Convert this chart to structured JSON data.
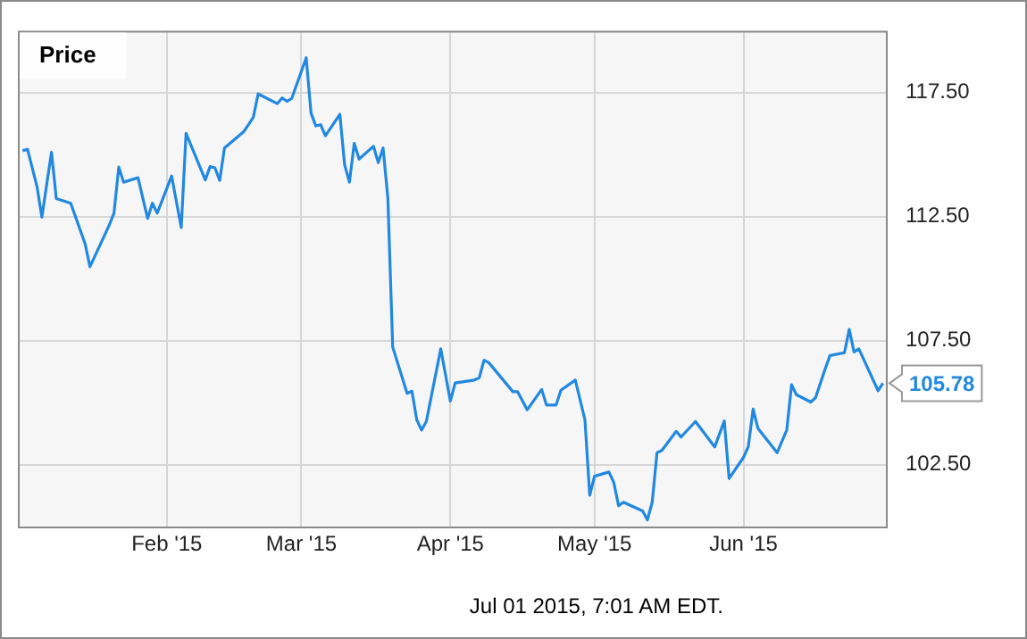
{
  "chart_data": {
    "type": "line",
    "title": "Price",
    "x": [
      "2015-01-02",
      "2015-01-03",
      "2015-01-05",
      "2015-01-06",
      "2015-01-08",
      "2015-01-09",
      "2015-01-12",
      "2015-01-15",
      "2015-01-16",
      "2015-01-20",
      "2015-01-21",
      "2015-01-22",
      "2015-01-23",
      "2015-01-26",
      "2015-01-28",
      "2015-01-29",
      "2015-01-30",
      "2015-02-02",
      "2015-02-04",
      "2015-02-05",
      "2015-02-09",
      "2015-02-10",
      "2015-02-11",
      "2015-02-12",
      "2015-02-13",
      "2015-02-17",
      "2015-02-18",
      "2015-02-19",
      "2015-02-20",
      "2015-02-24",
      "2015-02-25",
      "2015-02-26",
      "2015-02-27",
      "2015-03-02",
      "2015-03-03",
      "2015-03-04",
      "2015-03-05",
      "2015-03-06",
      "2015-03-09",
      "2015-03-10",
      "2015-03-11",
      "2015-03-12",
      "2015-03-13",
      "2015-03-16",
      "2015-03-17",
      "2015-03-18",
      "2015-03-19",
      "2015-03-20",
      "2015-03-23",
      "2015-03-24",
      "2015-03-25",
      "2015-03-26",
      "2015-03-27",
      "2015-03-30",
      "2015-04-01",
      "2015-04-02",
      "2015-04-06",
      "2015-04-07",
      "2015-04-08",
      "2015-04-09",
      "2015-04-14",
      "2015-04-15",
      "2015-04-17",
      "2015-04-20",
      "2015-04-21",
      "2015-04-23",
      "2015-04-24",
      "2015-04-27",
      "2015-04-29",
      "2015-04-30",
      "2015-05-01",
      "2015-05-04",
      "2015-05-05",
      "2015-05-06",
      "2015-05-07",
      "2015-05-11",
      "2015-05-12",
      "2015-05-13",
      "2015-05-14",
      "2015-05-15",
      "2015-05-18",
      "2015-05-19",
      "2015-05-22",
      "2015-05-26",
      "2015-05-28",
      "2015-05-29",
      "2015-06-01",
      "2015-06-02",
      "2015-06-03",
      "2015-06-04",
      "2015-06-08",
      "2015-06-10",
      "2015-06-11",
      "2015-06-12",
      "2015-06-15",
      "2015-06-16",
      "2015-06-18",
      "2015-06-19",
      "2015-06-22",
      "2015-06-23",
      "2015-06-24",
      "2015-06-25",
      "2015-06-29",
      "2015-06-30"
    ],
    "series": [
      {
        "color": "#2288e0",
        "values": [
          115.16,
          115.22,
          113.7,
          112.48,
          115.1,
          113.23,
          113.04,
          111.4,
          110.48,
          112.15,
          112.64,
          114.5,
          113.89,
          114.07,
          112.43,
          113.04,
          112.64,
          114.14,
          112.06,
          115.86,
          113.98,
          114.52,
          114.47,
          113.96,
          115.27,
          115.93,
          116.21,
          116.51,
          117.45,
          117.06,
          117.29,
          117.15,
          117.27,
          118.91,
          116.68,
          116.16,
          116.21,
          115.76,
          116.63,
          114.59,
          113.89,
          115.46,
          114.82,
          115.34,
          114.68,
          115.27,
          113.23,
          107.24,
          105.37,
          105.46,
          104.31,
          103.89,
          104.24,
          107.17,
          105.06,
          105.79,
          105.91,
          106.0,
          106.71,
          106.61,
          105.44,
          105.44,
          104.71,
          105.53,
          104.9,
          104.9,
          105.5,
          105.91,
          104.31,
          101.26,
          102.03,
          102.2,
          101.78,
          100.84,
          100.98,
          100.63,
          100.27,
          100.98,
          102.98,
          103.07,
          103.84,
          103.61,
          104.24,
          103.21,
          104.26,
          101.94,
          102.79,
          103.23,
          104.74,
          103.96,
          102.98,
          103.89,
          105.72,
          105.32,
          105.02,
          105.2,
          106.36,
          106.9,
          107.01,
          107.95,
          107.04,
          107.17,
          105.48,
          105.78
        ]
      }
    ],
    "xlim": [
      "2015-01-01",
      "2015-07-01"
    ],
    "xticks": [
      {
        "value": "2015-02-01",
        "label": "Feb '15"
      },
      {
        "value": "2015-03-01",
        "label": "Mar '15"
      },
      {
        "value": "2015-04-01",
        "label": "Apr '15"
      },
      {
        "value": "2015-05-01",
        "label": "May '15"
      },
      {
        "value": "2015-06-01",
        "label": "Jun '15"
      }
    ],
    "ylim": [
      100,
      120
    ],
    "yticks": [
      {
        "value": 102.5,
        "label": "102.50"
      },
      {
        "value": 107.5,
        "label": "107.50"
      },
      {
        "value": 112.5,
        "label": "112.50"
      },
      {
        "value": 117.5,
        "label": "117.50"
      }
    ],
    "grid": true,
    "annotations": [
      {
        "text": "105.78",
        "x": "2015-06-30",
        "y": 105.78
      },
      "Jul 01 2015, 7:01 AM EDT."
    ]
  }
}
